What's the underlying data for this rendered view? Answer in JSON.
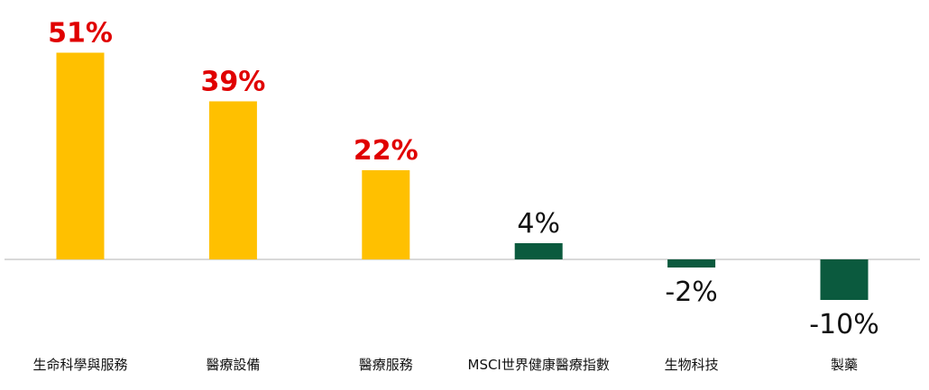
{
  "chart_data": {
    "type": "bar",
    "title": "",
    "xlabel": "",
    "ylabel": "",
    "categories": [
      "生命科學與服務",
      "醫療設備",
      "醫療服務",
      "MSCI世界健康醫療指數",
      "生物科技",
      "製藥"
    ],
    "values": [
      51,
      39,
      22,
      4,
      -2,
      -10
    ],
    "value_labels": [
      "51%",
      "39%",
      "22%",
      "4%",
      "-2%",
      "-10%"
    ],
    "ylim": [
      -10,
      51
    ],
    "grid": false,
    "legend": "none",
    "colors": {
      "highlight_bar": "#FFC000",
      "base_bar": "#0B5A3E",
      "highlight_label": "#E00000",
      "base_label": "#111111",
      "axis": "#D9D9D9"
    },
    "highlighted": [
      true,
      true,
      true,
      false,
      false,
      false
    ]
  }
}
